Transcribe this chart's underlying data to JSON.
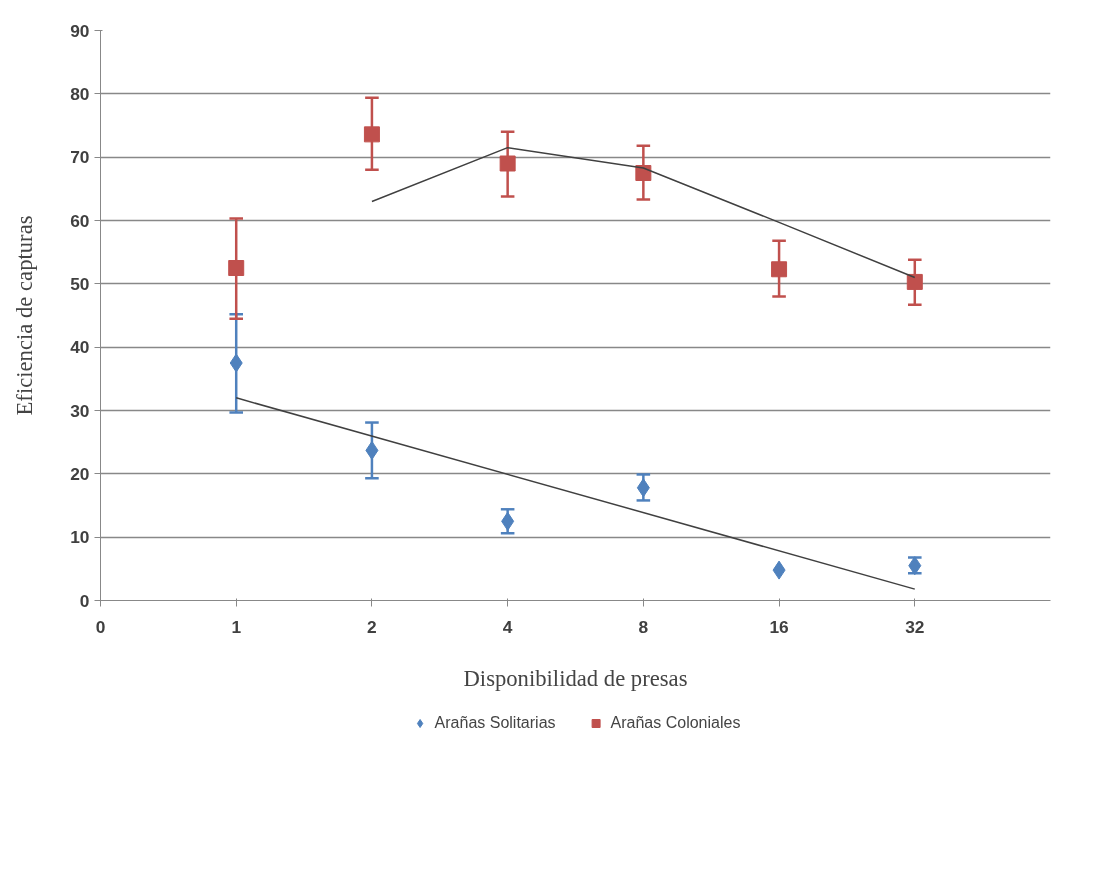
{
  "chart_data": {
    "type": "scatter",
    "xlabel": "Disponibilidad de presas",
    "ylabel": "Eficiencia de capturas",
    "categories": [
      "0",
      "1",
      "2",
      "4",
      "8",
      "16",
      "32"
    ],
    "ylim": [
      0,
      90
    ],
    "yticks": [
      0,
      10,
      20,
      30,
      40,
      50,
      60,
      70,
      80,
      90
    ],
    "grid": "y",
    "legend": "bottom",
    "series": [
      {
        "name": "Arañas Solitarias",
        "marker": "diamond",
        "color": "#4f81bd",
        "values": [
          null,
          37.5,
          23.7,
          12.5,
          17.8,
          4.8,
          5.5
        ],
        "errors": [
          null,
          [
            29.7,
            45.2
          ],
          [
            19.3,
            28.1
          ],
          [
            10.6,
            14.4
          ],
          [
            15.8,
            19.9
          ],
          null,
          [
            4.3,
            6.8
          ]
        ]
      },
      {
        "name": "Arañas Coloniales",
        "marker": "square",
        "color": "#c0504d",
        "values": [
          null,
          52.5,
          73.6,
          69,
          67.5,
          52.3,
          50.3
        ],
        "errors": [
          null,
          [
            44.5,
            60.3
          ],
          [
            68,
            79.4
          ],
          [
            63.8,
            74
          ],
          [
            63.3,
            71.8
          ],
          [
            48,
            56.8
          ],
          [
            46.7,
            53.8
          ]
        ]
      },
      {
        "type": "line",
        "marker": "none",
        "color": "#404040",
        "x": [
          "1",
          "32"
        ],
        "values": [
          32,
          1.8
        ]
      },
      {
        "type": "line",
        "marker": "none",
        "color": "#404040",
        "x": [
          "2",
          "4",
          "8",
          "16",
          "32"
        ],
        "values": [
          63,
          71.5,
          68.3,
          59.7,
          51
        ]
      }
    ]
  }
}
